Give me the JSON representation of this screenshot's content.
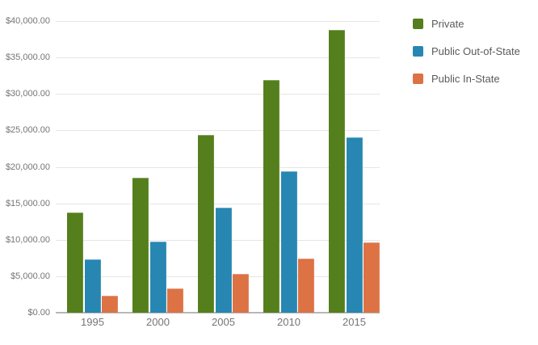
{
  "chart_data": {
    "type": "bar",
    "title": "",
    "xlabel": "",
    "ylabel": "",
    "categories": [
      "1995",
      "2000",
      "2005",
      "2010",
      "2015"
    ],
    "series": [
      {
        "name": "Private",
        "color": "#547f1c",
        "values": [
          13800,
          18500,
          24400,
          31900,
          38800
        ]
      },
      {
        "name": "Public Out-of-State",
        "color": "#2787b2",
        "values": [
          7300,
          9800,
          14400,
          19400,
          24000
        ]
      },
      {
        "name": "Public In-State",
        "color": "#dd7245",
        "values": [
          2300,
          3300,
          5300,
          7450,
          9650
        ]
      }
    ],
    "ylim": [
      0,
      40000
    ],
    "y_tick_interval": 5000,
    "y_tick_values": [
      0,
      5000,
      10000,
      15000,
      20000,
      25000,
      30000,
      35000,
      40000
    ],
    "y_tick_labels": [
      "$0.00",
      "$5,000.00",
      "$10,000.00",
      "$15,000.00",
      "$20,000.00",
      "$25,000.00",
      "$30,000.00",
      "$35,000.00",
      "$40,000.00"
    ],
    "grid": true,
    "legend_position": "right"
  },
  "colors": {
    "background": "#ffffff",
    "gridline": "#e6e6e6",
    "axis_line": "#b7b7b7",
    "axis_text": "#757575",
    "legend_text": "#5b5b5b"
  }
}
